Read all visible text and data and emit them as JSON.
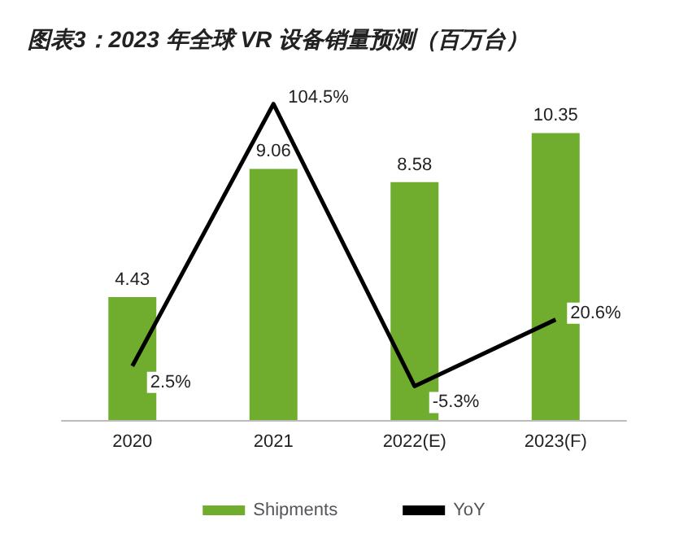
{
  "chart_data": {
    "type": "bar",
    "title": "图表3：2023 年全球 VR 设备销量预测（百万台）",
    "categories": [
      "2020",
      "2021",
      "2022(E)",
      "2023(F)"
    ],
    "series": [
      {
        "name": "Shipments",
        "color": "#70ad2f",
        "values": [
          4.43,
          9.06,
          8.58,
          10.35
        ]
      },
      {
        "name": "YoY",
        "type": "line",
        "axis": "y2",
        "color": "#000000",
        "values": [
          2.5,
          104.5,
          -5.3,
          20.6
        ],
        "value_labels": [
          "2.5%",
          "104.5%",
          "-5.3%",
          "20.6%"
        ]
      }
    ],
    "data_labels": true,
    "tick_labels": "x",
    "grid": false,
    "legend": "bottom",
    "marker": "none",
    "line_style": "solid"
  }
}
